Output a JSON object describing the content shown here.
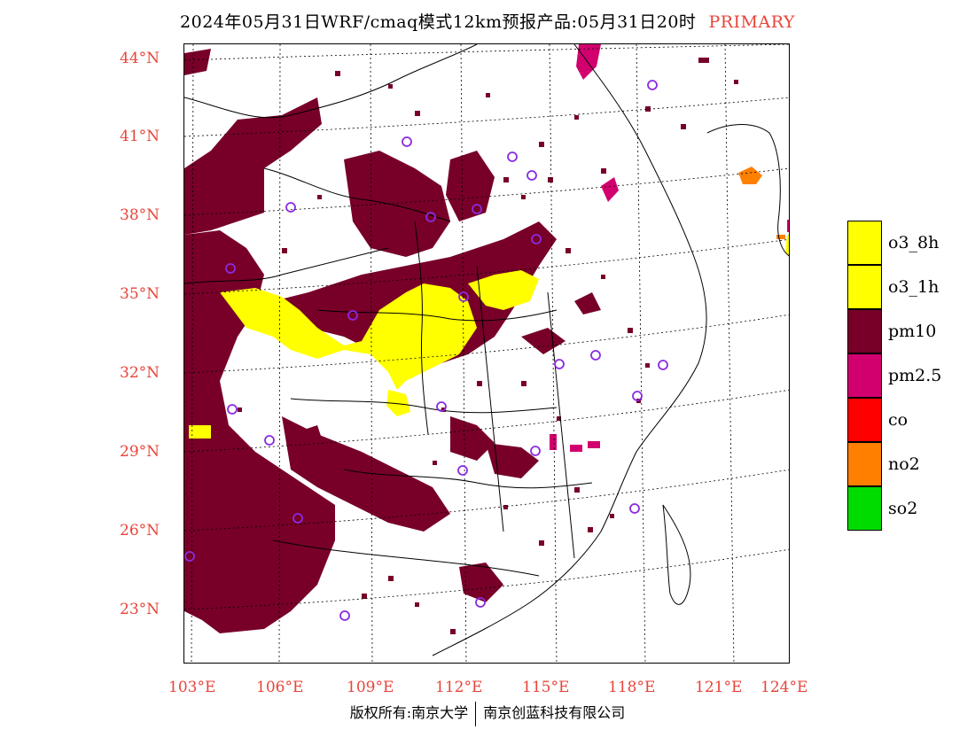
{
  "header": {
    "title": "2024年05月31日WRF/cmaq模式12km预报产品:05月31日20时",
    "mode": "PRIMARY"
  },
  "map": {
    "lat_labels": [
      "44°N",
      "41°N",
      "38°N",
      "35°N",
      "32°N",
      "29°N",
      "26°N",
      "23°N"
    ],
    "lon_labels": [
      "103°E",
      "106°E",
      "109°E",
      "112°E",
      "115°E",
      "118°E",
      "121°E",
      "124°E"
    ]
  },
  "legend": {
    "items": [
      {
        "label": "o3_8h",
        "color": "#ffff00"
      },
      {
        "label": "o3_1h",
        "color": "#ffff00"
      },
      {
        "label": "pm10",
        "color": "#780028"
      },
      {
        "label": "pm2.5",
        "color": "#d2006e"
      },
      {
        "label": "co",
        "color": "#ff0000"
      },
      {
        "label": "no2",
        "color": "#ff7f00"
      },
      {
        "label": "so2",
        "color": "#00dc00"
      }
    ]
  },
  "footer": {
    "left": "版权所有:南京大学",
    "right": "南京创蓝科技有限公司"
  }
}
